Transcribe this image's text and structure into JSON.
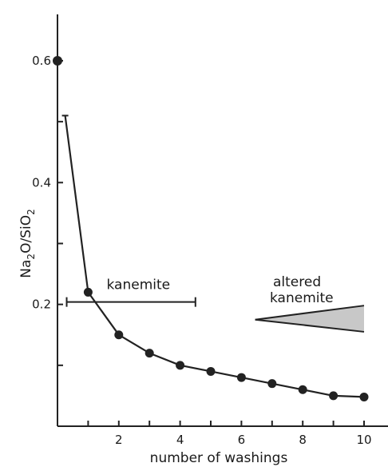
{
  "chart_data": {
    "type": "line",
    "xlabel": "number of washings",
    "ylabel": "Na2O/SiO2",
    "ylabel_parts": [
      "Na",
      "2",
      "O/SiO",
      "2"
    ],
    "xlim": [
      0,
      11
    ],
    "ylim": [
      0,
      0.7
    ],
    "xticks": [
      0,
      1,
      2,
      3,
      4,
      5,
      6,
      7,
      8,
      9,
      10
    ],
    "xtick_labels": [
      "2",
      "4",
      "6",
      "8",
      "10"
    ],
    "xtick_label_values": [
      2,
      4,
      6,
      8,
      10
    ],
    "yticks": [
      0.1,
      0.2,
      0.3,
      0.4,
      0.5,
      0.6
    ],
    "ytick_labels": [
      "0.2",
      "0.4",
      "0.6"
    ],
    "ytick_label_values": [
      0.2,
      0.4,
      0.6
    ],
    "grid": false,
    "series": [
      {
        "x": [
          0,
          1,
          2,
          3,
          4,
          5,
          6,
          7,
          8,
          9,
          10
        ],
        "y": [
          0.6,
          0.22,
          0.15,
          0.12,
          0.1,
          0.09,
          0.08,
          0.07,
          0.06,
          0.05,
          0.048
        ],
        "color": "#222222"
      }
    ],
    "curve_start": {
      "x": 0.25,
      "y": 0.51
    },
    "annotations": {
      "kanemite": {
        "label": "kanemite",
        "range": [
          0.3,
          4.5
        ],
        "y": 0.2
      },
      "altered_kanemite": {
        "label_lines": [
          "altered",
          "kanemite"
        ],
        "wedge": {
          "x_start": 6.5,
          "x_end": 10.0,
          "y_apex": 0.175,
          "y_top": 0.198,
          "y_bottom": 0.155
        },
        "fill": "#c8c8c8"
      }
    }
  }
}
